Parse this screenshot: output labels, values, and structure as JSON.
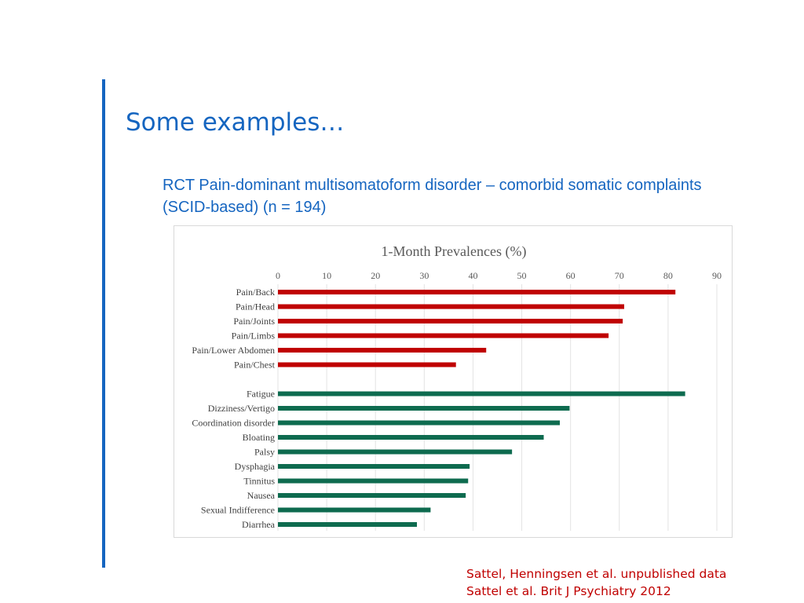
{
  "slide": {
    "title": "Some examples…",
    "subtitle_line1": "RCT Pain-dominant multisomatoform disorder – comorbid somatic complaints",
    "subtitle_line2": "(SCID-based) (n = 194)",
    "source_line1": "Sattel, Henningsen et al. unpublished data",
    "source_line2": "Sattel et al. Brit J Psychiatry 2012",
    "accent_color": "#1565c0",
    "source_color": "#c00000"
  },
  "chart_data": {
    "type": "bar",
    "orientation": "horizontal",
    "title": "1-Month Prevalences (%)",
    "xlabel": "",
    "ylabel": "",
    "xlim": [
      0,
      90
    ],
    "x_ticks": [
      0,
      10,
      20,
      30,
      40,
      50,
      60,
      70,
      80,
      90
    ],
    "x_axis_position": "top",
    "grid": true,
    "categories": [
      "Pain/Back",
      "Pain/Head",
      "Pain/Joints",
      "Pain/Limbs",
      "Pain/Lower Abdomen",
      "Pain/Chest",
      "",
      "Fatigue",
      "Dizziness/Vertigo",
      "Coordination disorder",
      "Bloating",
      "Palsy",
      "Dysphagia",
      "Tinnitus",
      "Nausea",
      "Sexual Indifference",
      "Diarrhea"
    ],
    "values": [
      81.5,
      71,
      70.7,
      67.8,
      42.7,
      36.5,
      null,
      83.5,
      59.8,
      57.8,
      54.5,
      48,
      39.3,
      39,
      38.5,
      31.3,
      28.5
    ],
    "bar_colors": [
      "#c00000",
      "#c00000",
      "#c00000",
      "#c00000",
      "#c00000",
      "#c00000",
      "",
      "#0e6b4f",
      "#0e6b4f",
      "#0e6b4f",
      "#0e6b4f",
      "#0e6b4f",
      "#0e6b4f",
      "#0e6b4f",
      "#0e6b4f",
      "#0e6b4f",
      "#0e6b4f"
    ]
  }
}
